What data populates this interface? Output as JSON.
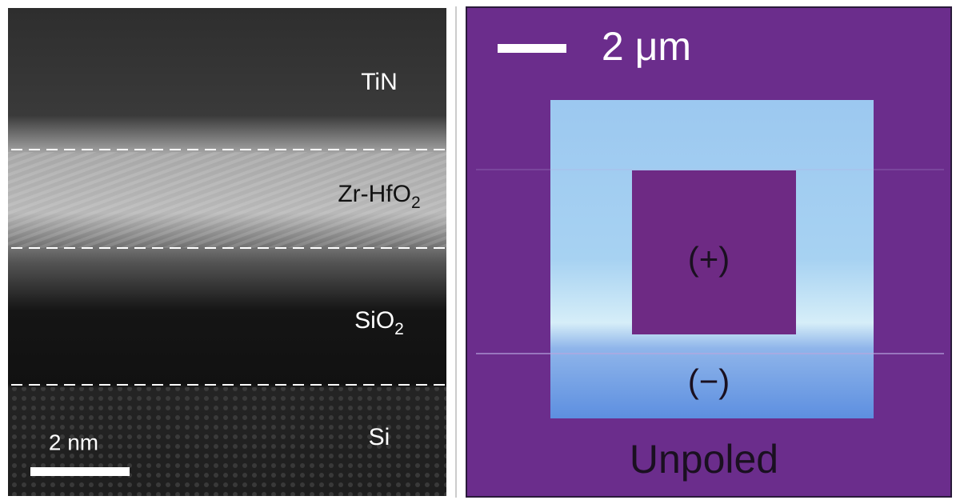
{
  "left_panel": {
    "layers": [
      {
        "text": "TiN"
      },
      {
        "text": "Zr-HfO",
        "subscript": "2"
      },
      {
        "text": "SiO",
        "subscript": "2"
      },
      {
        "text": "Si"
      }
    ],
    "scale_bar": "2 nm"
  },
  "right_panel": {
    "scale_bar": "2 μm",
    "positive": "(+)",
    "negative": "(−)",
    "unpoled": "Unpoled"
  }
}
